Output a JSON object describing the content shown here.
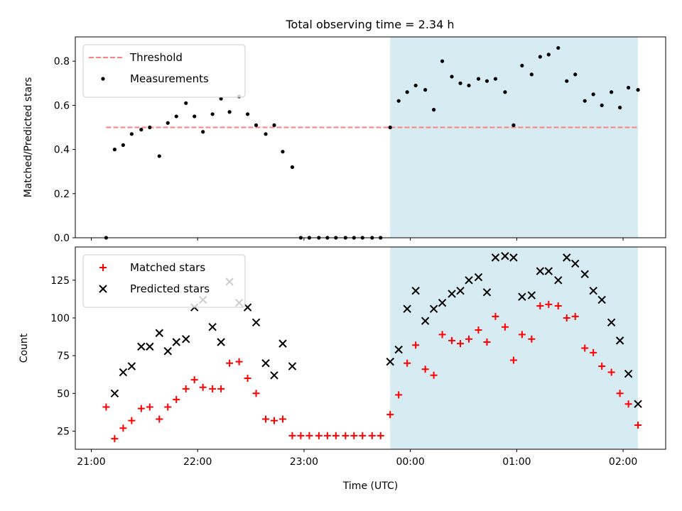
{
  "chart_data": [
    {
      "type": "scatter",
      "title": "Total observing time = 2.34 h",
      "ylabel": "Matched/Predicted stars",
      "xlabel": "",
      "xlim": [
        -0.15,
        5.4
      ],
      "ylim": [
        0,
        0.91
      ],
      "yticks": [
        0.0,
        0.2,
        0.4,
        0.6,
        0.8
      ],
      "ytick_labels": [
        "0.0",
        "0.2",
        "0.4",
        "0.6",
        "0.8"
      ],
      "xticks": [
        0,
        1,
        2,
        3,
        4,
        5
      ],
      "shaded_span": [
        2.81,
        5.14
      ],
      "shade_color": "#add8e6",
      "legend_position": "upper left",
      "threshold": {
        "name": "Threshold",
        "value": 0.5,
        "x_range": [
          0.14,
          5.14
        ],
        "color": "#ff7f7f"
      },
      "series": [
        {
          "name": "Measurements",
          "color": "#000000",
          "marker": "dot",
          "x": [
            0.14,
            0.22,
            0.3,
            0.38,
            0.47,
            0.55,
            0.64,
            0.72,
            0.8,
            0.89,
            0.97,
            1.05,
            1.14,
            1.22,
            1.3,
            1.39,
            1.47,
            1.55,
            1.64,
            1.72,
            1.8,
            1.89,
            1.97,
            2.05,
            2.14,
            2.22,
            2.3,
            2.39,
            2.47,
            2.55,
            2.64,
            2.72,
            2.81,
            2.89,
            2.97,
            3.05,
            3.14,
            3.22,
            3.3,
            3.39,
            3.47,
            3.55,
            3.64,
            3.72,
            3.8,
            3.89,
            3.97,
            4.05,
            4.14,
            4.22,
            4.3,
            4.39,
            4.47,
            4.55,
            4.64,
            4.72,
            4.8,
            4.89,
            4.97,
            5.05,
            5.14
          ],
          "y": [
            0.0,
            0.4,
            0.42,
            0.47,
            0.49,
            0.5,
            0.37,
            0.52,
            0.55,
            0.61,
            0.55,
            0.48,
            0.56,
            0.63,
            0.57,
            0.64,
            0.56,
            0.51,
            0.47,
            0.51,
            0.39,
            0.32,
            0.0,
            0.0,
            0.0,
            0.0,
            0.0,
            0.0,
            0.0,
            0.0,
            0.0,
            0.0,
            0.5,
            0.62,
            0.66,
            0.69,
            0.67,
            0.58,
            0.8,
            0.73,
            0.7,
            0.69,
            0.72,
            0.71,
            0.72,
            0.66,
            0.51,
            0.78,
            0.74,
            0.82,
            0.83,
            0.86,
            0.71,
            0.74,
            0.62,
            0.65,
            0.6,
            0.66,
            0.59,
            0.68,
            0.67
          ]
        }
      ]
    },
    {
      "type": "scatter",
      "title": "",
      "xlabel": "Time (UTC)",
      "ylabel": "Count",
      "xlim": [
        -0.15,
        5.4
      ],
      "ylim": [
        13,
        147
      ],
      "yticks": [
        25,
        50,
        75,
        100,
        125
      ],
      "xticks": [
        0,
        1,
        2,
        3,
        4,
        5
      ],
      "xtick_labels": [
        "21:00",
        "22:00",
        "23:00",
        "00:00",
        "01:00",
        "02:00"
      ],
      "shaded_span": [
        2.81,
        5.14
      ],
      "shade_color": "#add8e6",
      "legend_position": "upper left",
      "series": [
        {
          "name": "Matched stars",
          "color": "#ff0000",
          "marker": "plus",
          "x": [
            0.14,
            0.22,
            0.3,
            0.38,
            0.47,
            0.55,
            0.64,
            0.72,
            0.8,
            0.89,
            0.97,
            1.05,
            1.14,
            1.22,
            1.3,
            1.39,
            1.47,
            1.55,
            1.64,
            1.72,
            1.8,
            1.89,
            1.97,
            2.05,
            2.14,
            2.22,
            2.3,
            2.39,
            2.47,
            2.55,
            2.64,
            2.72,
            2.81,
            2.89,
            2.97,
            3.05,
            3.14,
            3.22,
            3.3,
            3.39,
            3.47,
            3.55,
            3.64,
            3.72,
            3.8,
            3.89,
            3.97,
            4.05,
            4.14,
            4.22,
            4.3,
            4.39,
            4.47,
            4.55,
            4.64,
            4.72,
            4.8,
            4.89,
            4.97,
            5.05,
            5.14
          ],
          "y": [
            41,
            20,
            27,
            32,
            40,
            41,
            33,
            41,
            46,
            53,
            59,
            54,
            53,
            53,
            70,
            71,
            60,
            50,
            33,
            32,
            33,
            22,
            22,
            22,
            22,
            22,
            22,
            22,
            22,
            22,
            22,
            22,
            36,
            49,
            70,
            82,
            66,
            62,
            89,
            85,
            83,
            86,
            92,
            84,
            101,
            94,
            72,
            89,
            86,
            108,
            109,
            108,
            100,
            101,
            80,
            77,
            68,
            64,
            50,
            43,
            29
          ]
        },
        {
          "name": "Predicted stars",
          "color": "#000000",
          "marker": "x",
          "x": [
            0.22,
            0.3,
            0.38,
            0.47,
            0.55,
            0.64,
            0.72,
            0.8,
            0.89,
            0.97,
            1.05,
            1.14,
            1.22,
            1.3,
            1.39,
            1.47,
            1.55,
            1.64,
            1.72,
            1.8,
            1.89,
            2.81,
            2.89,
            2.97,
            3.05,
            3.14,
            3.22,
            3.3,
            3.39,
            3.47,
            3.55,
            3.64,
            3.72,
            3.8,
            3.89,
            3.97,
            4.05,
            4.14,
            4.22,
            4.3,
            4.39,
            4.47,
            4.55,
            4.64,
            4.72,
            4.8,
            4.89,
            4.97,
            5.05,
            5.14
          ],
          "y": [
            50,
            64,
            68,
            81,
            81,
            90,
            78,
            84,
            86,
            107,
            112,
            94,
            84,
            124,
            110,
            107,
            97,
            70,
            62,
            83,
            68,
            71,
            79,
            106,
            118,
            98,
            106,
            110,
            116,
            118,
            125,
            127,
            117,
            140,
            141,
            140,
            114,
            115,
            131,
            131,
            125,
            140,
            136,
            129,
            118,
            112,
            97,
            85,
            63,
            43
          ]
        }
      ]
    }
  ]
}
